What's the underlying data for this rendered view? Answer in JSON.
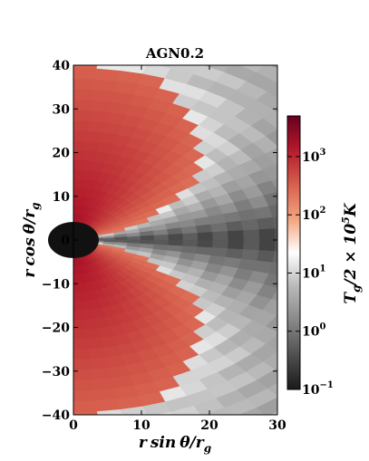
{
  "chart_data": {
    "type": "heatmap",
    "title": "AGN0.2",
    "xlabel": "r sin θ/r_g",
    "ylabel": "r cos θ/r_g",
    "xlim": [
      0,
      30
    ],
    "ylim": [
      -40,
      40
    ],
    "x_ticks": [
      "0",
      "10",
      "20",
      "30"
    ],
    "y_ticks": [
      "40",
      "30",
      "20",
      "10",
      "0",
      "−10",
      "−20",
      "−30",
      "−40"
    ],
    "colorbar": {
      "label": "T_g/2 × 10^5K",
      "scale": "log",
      "range": [
        0.1,
        5000
      ],
      "ticks": [
        {
          "base": "10",
          "exp": "3",
          "value": 1000
        },
        {
          "base": "10",
          "exp": "2",
          "value": 100
        },
        {
          "base": "10",
          "exp": "1",
          "value": 10
        },
        {
          "base": "10",
          "exp": "0",
          "value": 1
        },
        {
          "base": "10",
          "exp": "−1",
          "value": 0.1
        }
      ],
      "colormap": "gray-white-red (RdGy reversed)"
    },
    "description_levels": {
      "polar_region_max": 2000,
      "disk_plane_min": 0.3
    },
    "colors": {
      "hot": "#67001f",
      "warm": "#d6604d",
      "mid": "#ffffff",
      "cool": "#878787",
      "cold": "#1a1a1a"
    }
  }
}
